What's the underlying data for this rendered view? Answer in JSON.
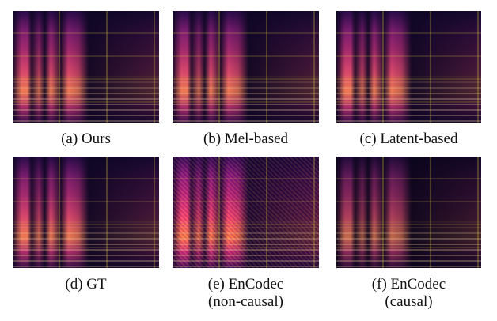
{
  "panels": [
    {
      "label": "(a) Ours",
      "label_line2": ""
    },
    {
      "label": "(b) Mel-based",
      "label_line2": ""
    },
    {
      "label": "(c) Latent-based",
      "label_line2": ""
    },
    {
      "label": "(d) GT",
      "label_line2": ""
    },
    {
      "label": "(e) EnCodec",
      "label_line2": "(non-causal)"
    },
    {
      "label": "(f) EnCodec",
      "label_line2": "(causal)"
    }
  ]
}
